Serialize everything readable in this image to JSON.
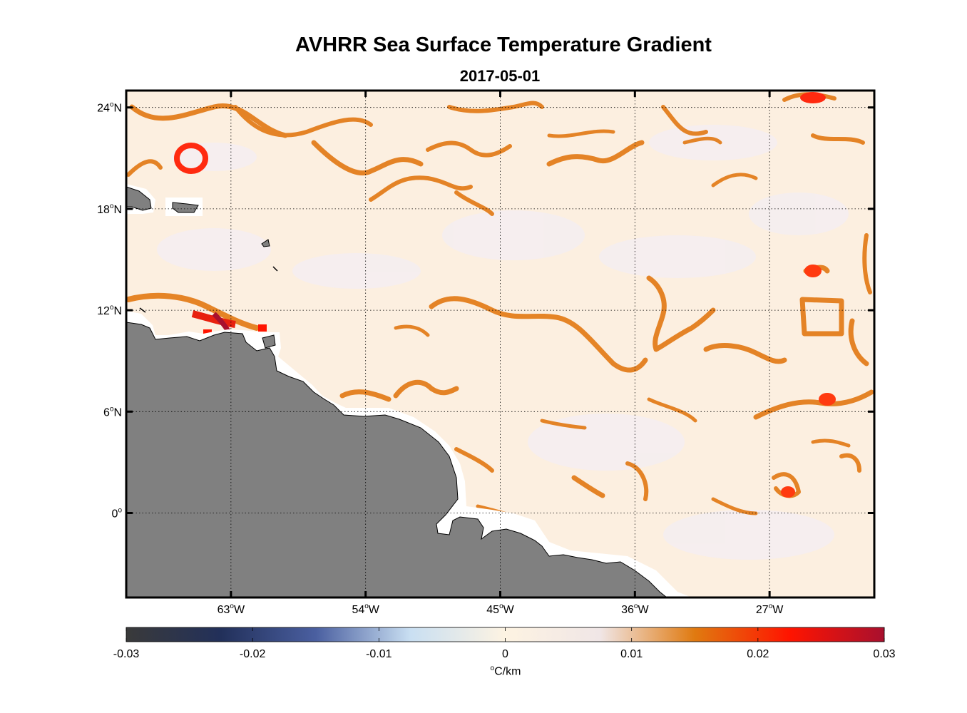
{
  "title": "AVHRR Sea Surface Temperature Gradient",
  "subtitle": "2017-05-01",
  "map": {
    "lon_range": [
      -70,
      -20
    ],
    "lat_range": [
      -5,
      25
    ],
    "lon_ticks": [
      {
        "value": -63,
        "label": "63",
        "suffix": "W"
      },
      {
        "value": -54,
        "label": "54",
        "suffix": "W"
      },
      {
        "value": -45,
        "label": "45",
        "suffix": "W"
      },
      {
        "value": -36,
        "label": "36",
        "suffix": "W"
      },
      {
        "value": -27,
        "label": "27",
        "suffix": "W"
      }
    ],
    "lat_ticks": [
      {
        "value": 24,
        "label": "24",
        "suffix": "N"
      },
      {
        "value": 18,
        "label": "18",
        "suffix": "N"
      },
      {
        "value": 12,
        "label": "12",
        "suffix": "N"
      },
      {
        "value": 6,
        "label": "6",
        "suffix": "N"
      },
      {
        "value": 0,
        "label": "0",
        "suffix": ""
      }
    ],
    "land_color": "#808080",
    "grid": "dotted"
  },
  "colorbar": {
    "range": [
      -0.03,
      0.03
    ],
    "ticks": [
      "-0.03",
      "-0.02",
      "-0.01",
      "0",
      "0.01",
      "0.02",
      "0.03"
    ],
    "unit": "C/km",
    "colors": [
      "#3a3a3a",
      "#22305a",
      "#4a5fa0",
      "#c9dff2",
      "#fdf3e2",
      "#f0e6e6",
      "#e07a10",
      "#ff1400",
      "#a8102e"
    ]
  }
}
